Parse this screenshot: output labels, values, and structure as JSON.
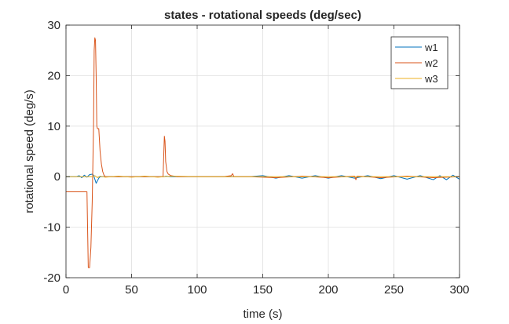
{
  "chart_data": {
    "type": "line",
    "title": "states - rotational speeds (deg/sec)",
    "xlabel": "time (s)",
    "ylabel": "rotational speed (deg/s)",
    "xlim": [
      0,
      300
    ],
    "ylim": [
      -20,
      30
    ],
    "xticks": [
      0,
      50,
      100,
      150,
      200,
      250,
      300
    ],
    "yticks": [
      -20,
      -10,
      0,
      10,
      20,
      30
    ],
    "grid": true,
    "legend_position": "top-right",
    "series": [
      {
        "name": "w1",
        "color": "#0072BD",
        "x": [
          0,
          8,
          10,
          12,
          14,
          16,
          18,
          20,
          21,
          22,
          23,
          24,
          25,
          26,
          28,
          30,
          40,
          60,
          75,
          76,
          80,
          100,
          120,
          140,
          150,
          160,
          170,
          180,
          190,
          200,
          210,
          220,
          230,
          240,
          250,
          260,
          270,
          280,
          285,
          290,
          295,
          300
        ],
        "values": [
          0,
          0,
          0.2,
          -0.2,
          0.3,
          -0.1,
          0.4,
          0.5,
          0.3,
          -0.5,
          -1.3,
          -0.8,
          -0.3,
          0,
          0,
          0,
          0,
          0,
          0,
          0.1,
          0,
          0,
          0,
          0,
          0.2,
          -0.3,
          0.2,
          -0.3,
          0.2,
          -0.3,
          0.2,
          -0.3,
          0.2,
          -0.4,
          0.2,
          -0.5,
          0.2,
          -0.6,
          0.2,
          -0.6,
          0.3,
          -0.5
        ]
      },
      {
        "name": "w2",
        "color": "#D95319",
        "x": [
          0,
          16,
          17,
          18,
          19,
          20,
          21,
          21.5,
          22,
          22.5,
          23,
          23.5,
          24,
          25,
          26,
          27,
          28,
          29,
          30,
          32,
          40,
          60,
          74,
          75,
          75.5,
          76,
          77,
          78,
          80,
          85,
          90,
          100,
          120,
          126,
          127,
          128,
          140,
          160,
          180,
          200,
          220,
          221,
          222,
          240,
          260,
          280,
          300
        ],
        "values": [
          -3,
          -3,
          -18,
          -18,
          -14,
          -5,
          10,
          25,
          27.5,
          27,
          20,
          10,
          9.5,
          9.5,
          5,
          2.5,
          1,
          0.3,
          0,
          0,
          0,
          0,
          0,
          8,
          7,
          3,
          1,
          0.5,
          0.2,
          0,
          0,
          0,
          0,
          0.2,
          0.6,
          0,
          0,
          -0.2,
          0.1,
          -0.2,
          0.1,
          -0.6,
          0.1,
          -0.2,
          0.1,
          -0.2,
          0
        ]
      },
      {
        "name": "w3",
        "color": "#EDB120",
        "x": [
          0,
          20,
          22,
          24,
          26,
          30,
          40,
          50,
          60,
          70,
          80,
          100,
          120,
          150,
          180,
          200,
          220,
          240,
          260,
          280,
          300
        ],
        "values": [
          0,
          0,
          0.2,
          -0.2,
          0.1,
          -0.1,
          0.1,
          -0.1,
          0.1,
          -0.1,
          0.1,
          0,
          0,
          0,
          0,
          0,
          0,
          0,
          0,
          0,
          0
        ]
      }
    ]
  }
}
